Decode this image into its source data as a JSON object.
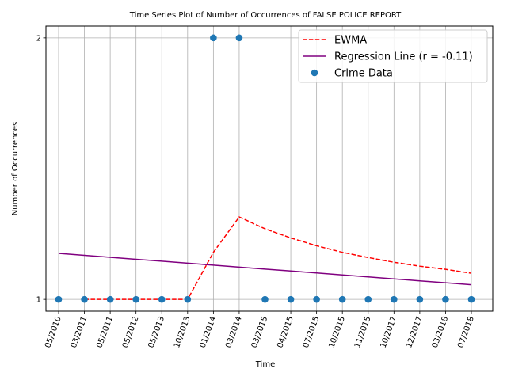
{
  "chart_data": {
    "type": "scatter",
    "title": "Time Series Plot of Number of Occurrences of FALSE POLICE REPORT",
    "xlabel": "Time",
    "ylabel": "Number of Occurrences",
    "categories": [
      "05/2010",
      "03/2011",
      "05/2011",
      "05/2012",
      "05/2013",
      "10/2013",
      "01/2014",
      "03/2014",
      "03/2015",
      "04/2015",
      "07/2015",
      "10/2015",
      "11/2015",
      "10/2017",
      "12/2017",
      "03/2018",
      "07/2018"
    ],
    "y_ticks": [
      "1",
      "2"
    ],
    "ylim": [
      0.955,
      2.045
    ],
    "grid": true,
    "legend_position": "top-right",
    "series": [
      {
        "name": "EWMA",
        "kind": "line",
        "style": "dashed",
        "color": "#ff0000",
        "values": [
          null,
          1,
          1,
          1,
          1,
          1,
          1.18,
          1.315,
          1.27,
          1.235,
          1.205,
          1.18,
          1.16,
          1.142,
          1.127,
          1.115,
          1.1
        ]
      },
      {
        "name": "Regression Line (r = -0.11)",
        "kind": "line",
        "style": "solid",
        "color": "#800080",
        "values": [
          1.176,
          1.1685,
          1.161,
          1.1535,
          1.146,
          1.1385,
          1.131,
          1.1235,
          1.116,
          1.1085,
          1.101,
          1.0935,
          1.086,
          1.0785,
          1.071,
          1.0635,
          1.056
        ]
      },
      {
        "name": "Crime Data",
        "kind": "scatter",
        "color": "#1f77b4",
        "values": [
          1,
          1,
          1,
          1,
          1,
          1,
          2,
          2,
          1,
          1,
          1,
          1,
          1,
          1,
          1,
          1,
          1
        ]
      }
    ]
  }
}
